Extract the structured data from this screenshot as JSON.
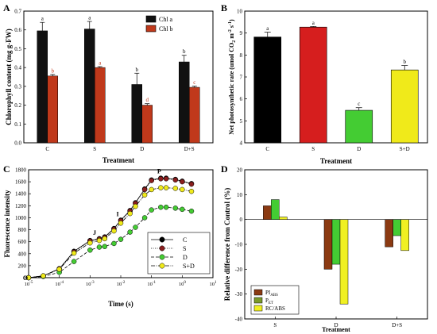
{
  "colors": {
    "chl_a": "#111111",
    "chl_b": "#c0391b",
    "C": "#000000",
    "S": "#d61e1e",
    "D": "#44cc33",
    "SD": "#f0ea1a",
    "pi_abs": "#8b3a12",
    "pi_tot": "#7b9a2a",
    "rc_abs": "#f0f022"
  },
  "chart_data": [
    {
      "panel": "A",
      "type": "bar",
      "xlabel": "Treatment",
      "ylabel": "Chlorophyll content (mg g-FW)",
      "categories": [
        "C",
        "S",
        "D",
        "D+S"
      ],
      "ylim": [
        0,
        0.7
      ],
      "yticks": [
        "0.0",
        "0.1",
        "0.2",
        "0.3",
        "0.4",
        "0.5",
        "0.6",
        "0.7"
      ],
      "series": [
        {
          "name": "Chl a",
          "values": [
            0.595,
            0.605,
            0.31,
            0.43
          ],
          "errors": [
            0.045,
            0.04,
            0.06,
            0.035
          ],
          "letters": [
            "a",
            "a",
            "b",
            "b"
          ]
        },
        {
          "name": "Chl b",
          "values": [
            0.355,
            0.4,
            0.2,
            0.295
          ],
          "errors": [
            0.008,
            0.005,
            0.008,
            0.006
          ],
          "letters": [
            "b",
            "a",
            "d",
            "c"
          ]
        }
      ]
    },
    {
      "panel": "B",
      "type": "bar",
      "xlabel": "Treatment",
      "ylabel": "Net photosynthetic rate (umol CO2 m-2 s-1)",
      "categories": [
        "C",
        "S",
        "D",
        "S+D"
      ],
      "ylim": [
        4,
        10
      ],
      "yticks": [
        "4",
        "5",
        "6",
        "7",
        "8",
        "9",
        "10"
      ],
      "values": [
        8.82,
        9.27,
        5.48,
        7.32
      ],
      "errors": [
        0.22,
        0.03,
        0.12,
        0.2
      ],
      "letters": [
        "a",
        "a",
        "c",
        "b"
      ]
    },
    {
      "panel": "C",
      "type": "line",
      "xlabel": "Time (s)",
      "ylabel": "Fluorescence intensity",
      "xscale": "log",
      "xlim": [
        1e-05,
        10
      ],
      "ylim": [
        0,
        1800
      ],
      "yticks": [
        "0",
        "200",
        "400",
        "600",
        "800",
        "1000",
        "1200",
        "1400",
        "1600",
        "1800"
      ],
      "xticks": [
        "10-5",
        "10-4",
        "10-3",
        "10-2",
        "10-1",
        "100",
        "101"
      ],
      "point_labels": [
        "O",
        "J",
        "I",
        "P"
      ],
      "x": [
        1e-05,
        3e-05,
        0.0001,
        0.0003,
        0.001,
        0.002,
        0.003,
        0.006,
        0.01,
        0.02,
        0.03,
        0.06,
        0.1,
        0.2,
        0.3,
        0.6,
        1,
        2
      ],
      "series": [
        {
          "name": "C",
          "values": [
            0,
            30,
            150,
            440,
            620,
            650,
            680,
            820,
            960,
            1120,
            1250,
            1480,
            1630,
            1660,
            1660,
            1640,
            1610,
            1570
          ]
        },
        {
          "name": "S",
          "values": [
            0,
            30,
            150,
            430,
            610,
            640,
            670,
            810,
            950,
            1110,
            1240,
            1470,
            1620,
            1650,
            1650,
            1630,
            1600,
            1560
          ]
        },
        {
          "name": "D",
          "values": [
            0,
            20,
            90,
            270,
            460,
            510,
            520,
            570,
            640,
            760,
            840,
            1000,
            1130,
            1175,
            1175,
            1160,
            1140,
            1110
          ]
        },
        {
          "name": "S+D",
          "values": [
            0,
            30,
            140,
            410,
            580,
            620,
            650,
            780,
            910,
            1070,
            1190,
            1380,
            1470,
            1500,
            1500,
            1490,
            1470,
            1440
          ]
        }
      ]
    },
    {
      "panel": "D",
      "type": "bar",
      "xlabel": "Treatment",
      "ylabel": "Relative difference from Control (%)",
      "categories": [
        "S",
        "D",
        "D+S"
      ],
      "ylim": [
        -40,
        20
      ],
      "yticks": [
        "-40",
        "-30",
        "-20",
        "-10",
        "0",
        "10",
        "20"
      ],
      "series": [
        {
          "name": "PI ABS",
          "values": [
            5.5,
            -20,
            -11
          ]
        },
        {
          "name": "P ET",
          "values": [
            8,
            -18,
            -6.5
          ]
        },
        {
          "name": "RC/ABS",
          "values": [
            1,
            -34,
            -12.5
          ]
        }
      ]
    }
  ],
  "panels": {
    "A": {
      "label": "A",
      "xlabel": "Treatment",
      "ylabel": "Chlorophyll content (mg g-FW)",
      "legend": [
        "Chl a",
        "Chl b"
      ]
    },
    "B": {
      "label": "B",
      "xlabel": "Treatment",
      "ylabel_main": "Net photosynthetic rate (umol CO",
      "ylabel_sub": "2",
      "ylabel_mid": " m",
      "ylabel_sup1": "-2",
      "ylabel_end": " s",
      "ylabel_sup2": "-1",
      "ylabel_close": ")"
    },
    "C": {
      "label": "C",
      "xlabel": "Time (s)",
      "ylabel": "Fluorescence intensity",
      "legend": [
        "C",
        "S",
        "D",
        "S+D"
      ]
    },
    "D": {
      "label": "D",
      "xlabel": "Treatment",
      "ylabel": "Relative difference from Control (%)",
      "legend": [
        {
          "main": "PI",
          "sub": "ABS"
        },
        {
          "main": "P",
          "sub": "ET"
        },
        {
          "main": "RC/ABS",
          "sub": ""
        }
      ]
    }
  }
}
